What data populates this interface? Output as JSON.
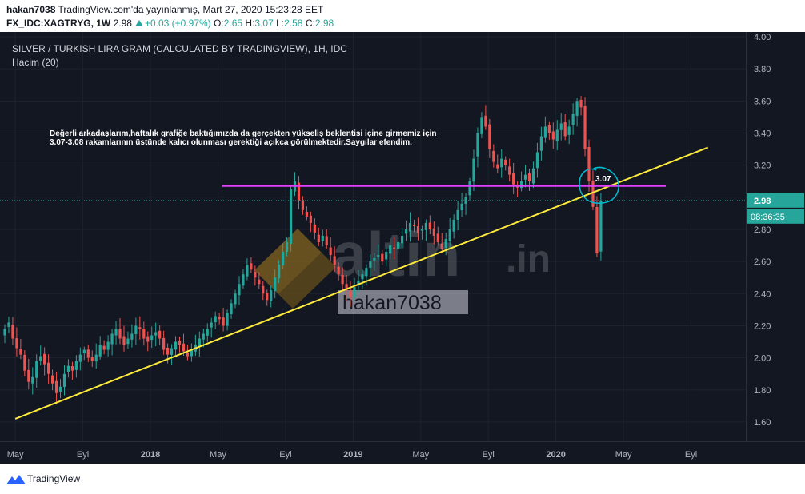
{
  "header": {
    "author": "hakan7038",
    "published": "TradingView.com'da yayınlanmış, Mart 27, 2020 15:23:28 EET",
    "symbol": "FX_IDC:XAGTRYG, 1W",
    "last": "2.98",
    "change": "+0.03 (+0.97%)",
    "open_label": "O:",
    "open": "2.65",
    "high_label": "H:",
    "high": "3.07",
    "low_label": "L:",
    "low": "2.58",
    "close_label": "C:",
    "close": "2.98"
  },
  "chart_data": {
    "type": "candlestick",
    "title": "SILVER / TURKISH LIRA GRAM (CALCULATED BY TRADINGVIEW), 1H, IDC",
    "indicator": "Hacim (20)",
    "y_ticks": [
      "4.00",
      "3.80",
      "3.60",
      "3.40",
      "3.20",
      "3.00",
      "2.80",
      "2.60",
      "2.40",
      "2.20",
      "2.00",
      "1.80",
      "1.60"
    ],
    "x_ticks": [
      "May",
      "Eyl",
      "2018",
      "May",
      "Eyl",
      "2019",
      "May",
      "Eyl",
      "2020",
      "May",
      "Eyl"
    ],
    "x_range": [
      "2017-04",
      "2021-01"
    ],
    "ylim": [
      1.5,
      4.0
    ],
    "price_label": "2.98",
    "countdown": "08:36:35",
    "annotation": "Değerli arkadaşlarım,haftalık grafiğe baktığımızda da gerçekten yükseliş beklentisi içine girmemiz için",
    "annotation2": "3.07-3.08 rakamlarının üstünde kalıcı olunması gerektiği açıkca görülmektedir.Saygılar efendim.",
    "level_label": "3.07",
    "horizontal_level": 3.07,
    "trendline": {
      "from": [
        "2017-05",
        1.62
      ],
      "to": [
        "2020-10",
        3.31
      ]
    },
    "candles_close": [
      2.18,
      2.22,
      2.12,
      2.06,
      2.02,
      1.92,
      1.85,
      1.88,
      1.98,
      2.01,
      1.96,
      1.9,
      1.84,
      1.78,
      1.82,
      1.9,
      1.95,
      1.92,
      1.98,
      2.02,
      2.05,
      2.0,
      1.98,
      2.02,
      2.08,
      2.05,
      2.1,
      2.15,
      2.18,
      2.12,
      2.08,
      2.12,
      2.15,
      2.2,
      2.18,
      2.12,
      2.1,
      2.14,
      2.16,
      2.12,
      2.05,
      2.02,
      2.06,
      2.1,
      2.08,
      2.04,
      2.01,
      2.05,
      2.08,
      2.12,
      2.15,
      2.18,
      2.22,
      2.26,
      2.24,
      2.2,
      2.28,
      2.34,
      2.4,
      2.46,
      2.52,
      2.58,
      2.55,
      2.5,
      2.46,
      2.4,
      2.36,
      2.42,
      2.5,
      2.58,
      2.66,
      2.72,
      3.05,
      3.1,
      2.98,
      2.92,
      2.88,
      2.84,
      2.78,
      2.72,
      2.76,
      2.7,
      2.64,
      2.58,
      2.52,
      2.46,
      2.42,
      2.38,
      2.44,
      2.48,
      2.52,
      2.56,
      2.6,
      2.62,
      2.64,
      2.6,
      2.66,
      2.7,
      2.68,
      2.72,
      2.76,
      2.8,
      2.84,
      2.82,
      2.78,
      2.8,
      2.84,
      2.8,
      2.76,
      2.72,
      2.68,
      2.74,
      2.8,
      2.86,
      2.92,
      2.96,
      3.0,
      3.1,
      3.24,
      3.4,
      3.5,
      3.44,
      3.3,
      3.22,
      3.18,
      3.24,
      3.2,
      3.14,
      3.08,
      3.06,
      3.1,
      3.14,
      3.1,
      3.18,
      3.28,
      3.38,
      3.44,
      3.4,
      3.36,
      3.42,
      3.46,
      3.38,
      3.44,
      3.52,
      3.6,
      3.56,
      3.3,
      3.1,
      2.94,
      2.65,
      2.98
    ]
  },
  "watermark": {
    "brand": "altin",
    "suffix": ".in",
    "user": "hakan7038"
  },
  "footer": {
    "brand": "TradingView"
  },
  "colors": {
    "background": "#131722",
    "up": "#26a69a",
    "down": "#ef5350",
    "trend": "#ffeb3b",
    "level": "#e040fb",
    "circle": "#00bcd4"
  }
}
